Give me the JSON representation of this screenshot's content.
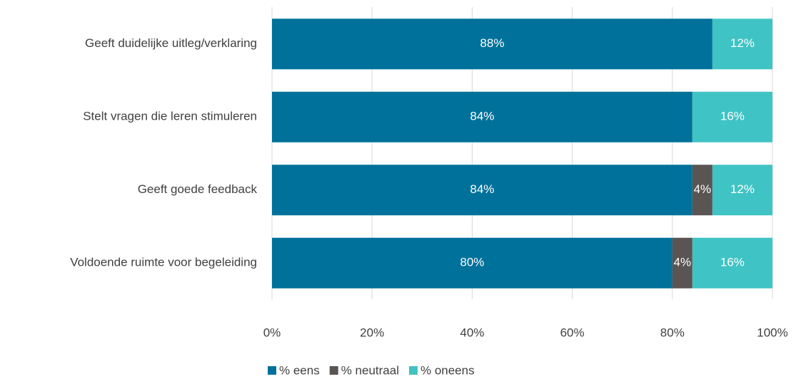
{
  "chart_data": {
    "type": "stacked-bar-horizontal",
    "categories": [
      "Geeft duidelijke uitleg/verklaring",
      "Stelt vragen die leren stimuleren",
      "Geeft goede feedback",
      "Voldoende ruimte voor begeleiding"
    ],
    "series": [
      {
        "name": "% eens",
        "color": "#00719a",
        "values": [
          88,
          84,
          84,
          80
        ],
        "value_labels": [
          "88%",
          "84%",
          "84%",
          "80%"
        ]
      },
      {
        "name": "% neutraal",
        "color": "#5a5452",
        "values": [
          null,
          null,
          4,
          4
        ],
        "value_labels": [
          null,
          null,
          "4%",
          "4%"
        ]
      },
      {
        "name": "% oneens",
        "color": "#40c3c4",
        "values": [
          12,
          16,
          12,
          16
        ],
        "value_labels": [
          "12%",
          "16%",
          "12%",
          "16%"
        ]
      }
    ],
    "xlim": [
      0,
      100
    ],
    "xticks": [
      {
        "value": 0,
        "label": "0%"
      },
      {
        "value": 20,
        "label": "20%"
      },
      {
        "value": 40,
        "label": "40%"
      },
      {
        "value": 60,
        "label": "60%"
      },
      {
        "value": 80,
        "label": "80%"
      },
      {
        "value": 100,
        "label": "100%"
      }
    ],
    "grid": true,
    "legend": "bottom"
  }
}
